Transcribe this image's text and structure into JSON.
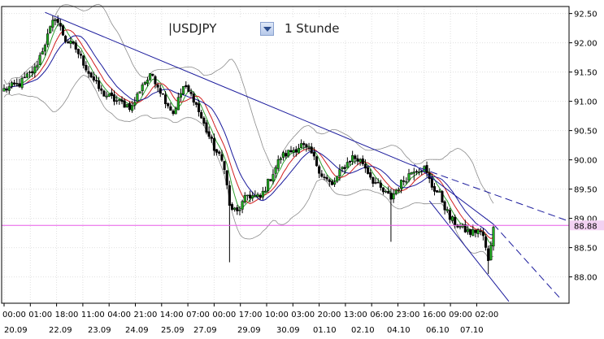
{
  "toolbar": {
    "symbol": "|USDJPY",
    "timeframe": "1 Stunde",
    "dropdown_icon": "chevron-down-icon"
  },
  "chart_data": {
    "type": "candlestick",
    "title": "",
    "xlabel": "",
    "ylabel": "",
    "ylim": [
      87.55,
      92.62
    ],
    "y_ticks": [
      88.0,
      88.5,
      89.0,
      89.5,
      90.0,
      90.5,
      91.0,
      91.5,
      92.0,
      92.5
    ],
    "y_tick_labels": [
      "88.00",
      "88.50",
      "89.00",
      "89.50",
      "90.00",
      "90.50",
      "91.00",
      "91.50",
      "92.00",
      "92.50"
    ],
    "x_time_labels": [
      "00:00",
      "01:00",
      "18:00",
      "11:00",
      "04:00",
      "21:00",
      "14:00",
      "07:00",
      "00:00",
      "17:00",
      "10:00",
      "03:00",
      "20:00",
      "13:00",
      "06:00",
      "23:00",
      "16:00",
      "09:00",
      "02:00"
    ],
    "x_date_labels": [
      "20.09",
      "22.09",
      "23.09",
      "24.09",
      "25.09",
      "27.09",
      "29.09",
      "30.09",
      "01.10",
      "02.10",
      "04.10",
      "06.10",
      "07.10"
    ],
    "current_price": {
      "value": 88.88,
      "label": "88.88"
    },
    "price_anchors": [
      [
        0,
        91.2
      ],
      [
        6,
        91.3
      ],
      [
        12,
        91.55
      ],
      [
        16,
        92.0
      ],
      [
        20,
        92.45
      ],
      [
        24,
        92.05
      ],
      [
        28,
        91.9
      ],
      [
        33,
        91.5
      ],
      [
        38,
        91.15
      ],
      [
        44,
        91.0
      ],
      [
        50,
        90.9
      ],
      [
        54,
        91.3
      ],
      [
        58,
        91.45
      ],
      [
        62,
        91.1
      ],
      [
        66,
        90.8
      ],
      [
        70,
        91.25
      ],
      [
        74,
        91.05
      ],
      [
        78,
        90.6
      ],
      [
        82,
        90.2
      ],
      [
        86,
        89.9
      ],
      [
        88,
        89.2
      ],
      [
        91,
        89.1
      ],
      [
        95,
        89.4
      ],
      [
        100,
        89.35
      ],
      [
        104,
        89.7
      ],
      [
        108,
        90.05
      ],
      [
        112,
        90.15
      ],
      [
        116,
        90.25
      ],
      [
        120,
        90.1
      ],
      [
        124,
        89.75
      ],
      [
        128,
        89.55
      ],
      [
        132,
        89.85
      ],
      [
        136,
        90.05
      ],
      [
        140,
        89.95
      ],
      [
        144,
        89.65
      ],
      [
        148,
        89.45
      ],
      [
        151,
        89.35
      ],
      [
        154,
        89.55
      ],
      [
        157,
        89.7
      ],
      [
        160,
        89.85
      ],
      [
        164,
        89.85
      ],
      [
        167,
        89.55
      ],
      [
        170,
        89.4
      ],
      [
        174,
        89.0
      ],
      [
        178,
        88.85
      ],
      [
        182,
        88.75
      ],
      [
        185,
        88.8
      ],
      [
        187,
        88.7
      ],
      [
        189,
        88.25
      ],
      [
        191,
        88.9
      ]
    ]
  }
}
